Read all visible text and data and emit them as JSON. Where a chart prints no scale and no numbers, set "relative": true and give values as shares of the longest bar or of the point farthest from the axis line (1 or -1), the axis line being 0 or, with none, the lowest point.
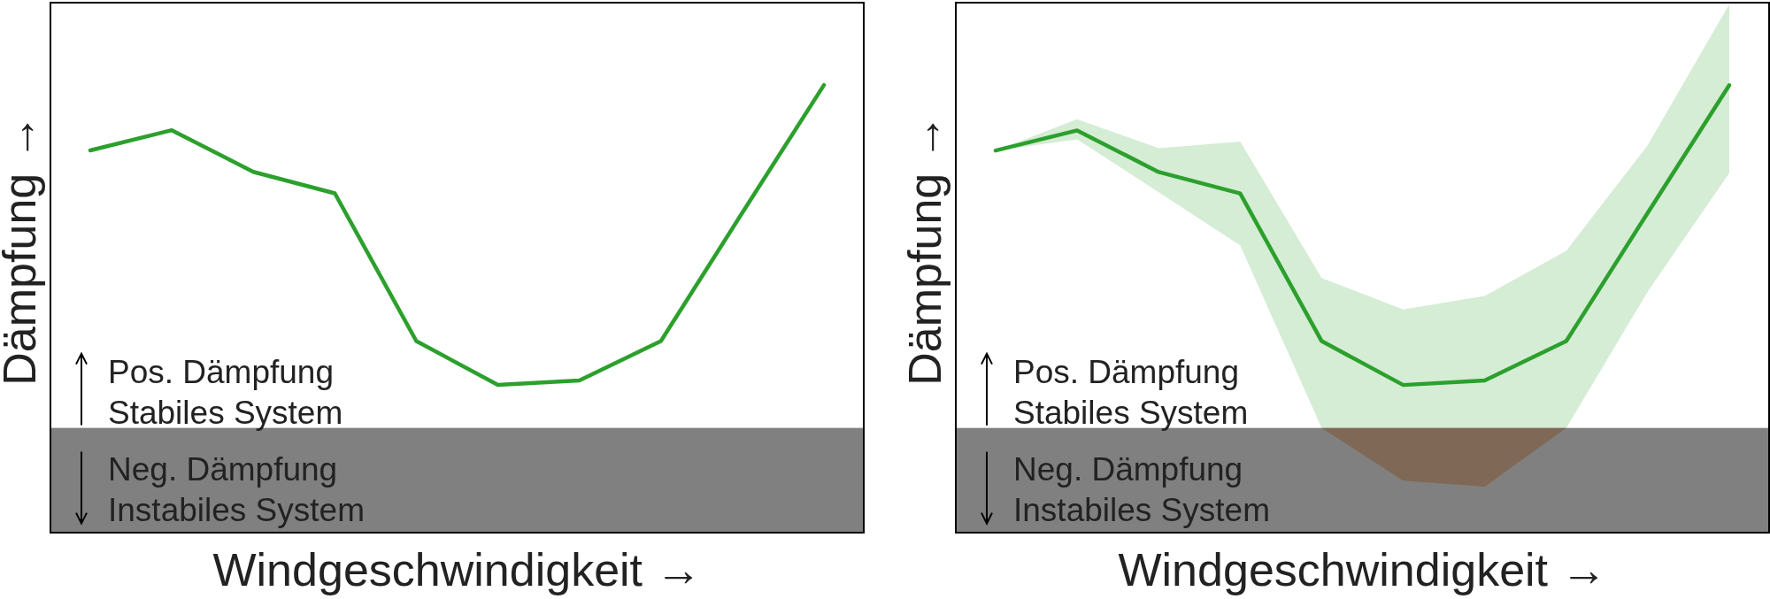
{
  "chart_data": [
    {
      "type": "line",
      "relative": true,
      "xlabel": "Windgeschwindigkeit →",
      "ylabel": "Dämpfung →",
      "categories": [
        null,
        null,
        null,
        null,
        null,
        null,
        null,
        null,
        null,
        null
      ],
      "series": [
        {
          "color": "#2ca02c",
          "values": [
            0.854,
            0.899,
            0.806,
            0.758,
            0.428,
            0.33,
            0.34,
            0.428,
            0.715,
            1
          ]
        }
      ],
      "bands": [
        {
          "axis": "y",
          "from": 0,
          "to": 0.234,
          "color": "#808080"
        }
      ],
      "annotations": [
        "Pos. Dämpfung\nStabiles System",
        "Neg. Dämpfung\nInstabiles System"
      ]
    },
    {
      "type": "line",
      "relative": true,
      "xlabel": "Windgeschwindigkeit →",
      "ylabel": "Dämpfung →",
      "categories": [
        null,
        null,
        null,
        null,
        null,
        null,
        null,
        null,
        null,
        null
      ],
      "series": [
        {
          "color": "#2ca02c",
          "values": [
            0.854,
            0.899,
            0.806,
            0.758,
            0.428,
            0.33,
            0.34,
            0.428,
            0.715,
            1
          ],
          "lower": [
            0.854,
            0.879,
            0.761,
            0.642,
            0.234,
            0.116,
            0.103,
            0.234,
            0.539,
            0.804
          ],
          "upper": [
            0.854,
            0.924,
            0.859,
            0.874,
            0.569,
            0.499,
            0.529,
            0.63,
            0.866,
            1.181
          ]
        }
      ],
      "bands": [
        {
          "axis": "y",
          "from": 0,
          "to": 0.234,
          "color": "#808080"
        }
      ],
      "annotations": [
        "Pos. Dämpfung\nStabiles System",
        "Neg. Dämpfung\nInstabiles System"
      ]
    }
  ]
}
